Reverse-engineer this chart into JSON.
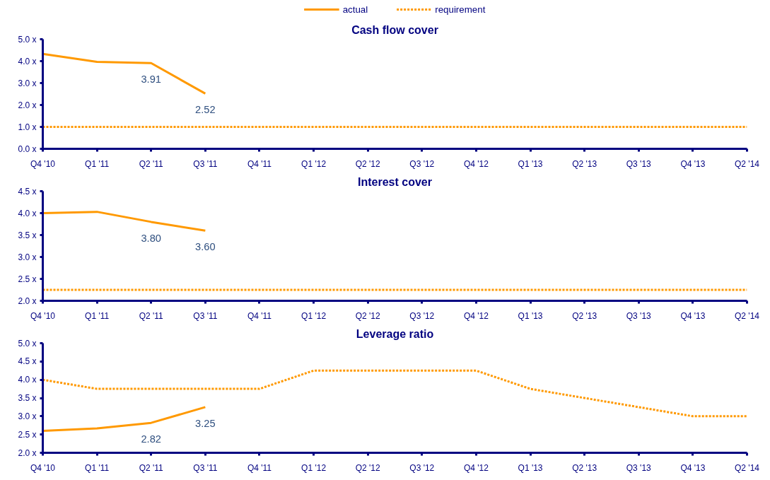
{
  "chart_data": [
    {
      "type": "line",
      "title": "Cash flow cover",
      "legend": "top",
      "grid": false,
      "categories": [
        "Q4 '10",
        "Q1 '11",
        "Q2 '11",
        "Q3 '11",
        "Q4 '11",
        "Q1 '12",
        "Q2 '12",
        "Q3 '12",
        "Q4 '12",
        "Q1 '13",
        "Q2 '13",
        "Q3 '13",
        "Q4 '13",
        "Q2 '14"
      ],
      "ylim": [
        0,
        5
      ],
      "yticks": [
        {
          "value": 0,
          "label": "0.0 x"
        },
        {
          "value": 1,
          "label": "1.0 x"
        },
        {
          "value": 2,
          "label": "2.0 x"
        },
        {
          "value": 3,
          "label": "3.0 x"
        },
        {
          "value": 4,
          "label": "4.0 x"
        },
        {
          "value": 5,
          "label": "5.0 x"
        }
      ],
      "series": [
        {
          "name": "actual",
          "color": "#ff9900",
          "line_style": "solid",
          "values": [
            4.33,
            3.97,
            3.91,
            2.52,
            null,
            null,
            null,
            null,
            null,
            null,
            null,
            null,
            null,
            null
          ],
          "value_labels": [
            null,
            null,
            "3.91",
            "2.52",
            null,
            null,
            null,
            null,
            null,
            null,
            null,
            null,
            null,
            null
          ]
        },
        {
          "name": "requirement",
          "color": "#ff9900",
          "line_style": "dotted",
          "values": [
            1,
            1,
            1,
            1,
            1,
            1,
            1,
            1,
            1,
            1,
            1,
            1,
            1,
            1
          ]
        }
      ]
    },
    {
      "type": "line",
      "title": "Interest cover",
      "legend": false,
      "grid": false,
      "categories": [
        "Q4 '10",
        "Q1 '11",
        "Q2 '11",
        "Q3 '11",
        "Q4 '11",
        "Q1 '12",
        "Q2 '12",
        "Q3 '12",
        "Q4 '12",
        "Q1 '13",
        "Q2 '13",
        "Q3 '13",
        "Q4 '13",
        "Q2 '14"
      ],
      "ylim": [
        2,
        4.5
      ],
      "yticks": [
        {
          "value": 2,
          "label": "2.0 x"
        },
        {
          "value": 2.5,
          "label": "2.5 x"
        },
        {
          "value": 3,
          "label": "3.0 x"
        },
        {
          "value": 3.5,
          "label": "3.5 x"
        },
        {
          "value": 4,
          "label": "4.0 x"
        },
        {
          "value": 4.5,
          "label": "4.5 x"
        }
      ],
      "series": [
        {
          "color": "#ff9900",
          "line_style": "solid",
          "values": [
            4.0,
            4.03,
            3.8,
            3.6,
            null,
            null,
            null,
            null,
            null,
            null,
            null,
            null,
            null,
            null
          ],
          "value_labels": [
            null,
            null,
            "3.80",
            "3.60",
            null,
            null,
            null,
            null,
            null,
            null,
            null,
            null,
            null,
            null
          ]
        },
        {
          "color": "#ff9900",
          "line_style": "dotted",
          "values": [
            2.25,
            2.25,
            2.25,
            2.25,
            2.25,
            2.25,
            2.25,
            2.25,
            2.25,
            2.25,
            2.25,
            2.25,
            2.25,
            2.25
          ]
        }
      ]
    },
    {
      "type": "line",
      "title": "Leverage ratio",
      "legend": false,
      "grid": false,
      "categories": [
        "Q4 '10",
        "Q1 '11",
        "Q2 '11",
        "Q3 '11",
        "Q4 '11",
        "Q1 '12",
        "Q2 '12",
        "Q3 '12",
        "Q4 '12",
        "Q1 '13",
        "Q2 '13",
        "Q3 '13",
        "Q4 '13",
        "Q2 '14"
      ],
      "ylim": [
        2,
        5
      ],
      "yticks": [
        {
          "value": 2,
          "label": "2.0 x"
        },
        {
          "value": 2.5,
          "label": "2.5 x"
        },
        {
          "value": 3,
          "label": "3.0 x"
        },
        {
          "value": 3.5,
          "label": "3.5 x"
        },
        {
          "value": 4,
          "label": "4.0 x"
        },
        {
          "value": 4.5,
          "label": "4.5 x"
        },
        {
          "value": 5,
          "label": "5.0 x"
        }
      ],
      "series": [
        {
          "color": "#ff9900",
          "line_style": "solid",
          "values": [
            2.6,
            2.67,
            2.82,
            3.25,
            null,
            null,
            null,
            null,
            null,
            null,
            null,
            null,
            null,
            null
          ],
          "value_labels": [
            null,
            null,
            "2.82",
            "3.25",
            null,
            null,
            null,
            null,
            null,
            null,
            null,
            null,
            null,
            null
          ]
        },
        {
          "color": "#ff9900",
          "line_style": "dotted",
          "values": [
            4.0,
            3.75,
            3.75,
            3.75,
            3.75,
            4.25,
            4.25,
            4.25,
            4.25,
            3.75,
            3.5,
            3.25,
            3.0,
            3.0
          ]
        }
      ]
    }
  ]
}
